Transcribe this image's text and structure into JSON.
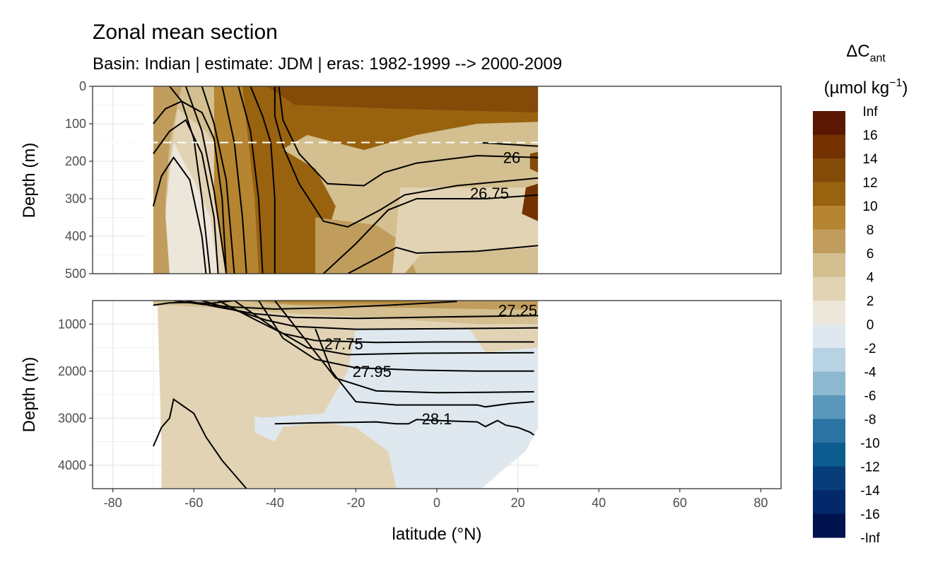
{
  "chart_data": {
    "type": "heatmap",
    "title": "Zonal mean section",
    "subtitle": "Basin: Indian | estimate: JDM  | eras: 1982-1999 --> 2000-2009",
    "xlabel": "latitude (°N)",
    "ylabel": "Depth (m)",
    "xlim": [
      -85,
      85
    ],
    "x_ticks": [
      "-80",
      "-60",
      "-40",
      "-20",
      "0",
      "20",
      "40",
      "60",
      "80"
    ],
    "data_extent_lat": [
      -70,
      25
    ],
    "panels": [
      {
        "ylim": [
          0,
          500
        ],
        "y_ticks": [
          "0",
          "100",
          "200",
          "300",
          "400",
          "500"
        ],
        "reference_depth": 150
      },
      {
        "ylim": [
          500,
          4500
        ],
        "y_ticks": [
          "1000",
          "2000",
          "3000",
          "4000"
        ]
      }
    ],
    "legend": {
      "title_main": "ΔC",
      "title_sub": "ant",
      "units_pre": "(µmol kg",
      "units_sup": "−1",
      "units_post": ")",
      "placement": "right",
      "labels": [
        "Inf",
        "16",
        "14",
        "12",
        "10",
        "8",
        "6",
        "4",
        "2",
        "0",
        "-2",
        "-4",
        "-6",
        "-8",
        "-10",
        "-12",
        "-14",
        "-16",
        "-Inf"
      ],
      "colors": [
        "#5a1703",
        "#743203",
        "#844a08",
        "#99620f",
        "#b58531",
        "#c09d5c",
        "#d3bf8f",
        "#e2d3b5",
        "#ede6db",
        "#dee8ee",
        "#b7d3e3",
        "#8cb8d0",
        "#5b97ba",
        "#2a73a3",
        "#0c5c90",
        "#073e7a",
        "#04286a",
        "#01134e"
      ]
    },
    "contour_labels": [
      {
        "text": "26",
        "lat": 18.5,
        "depth": 190
      },
      {
        "text": "26.75",
        "lat": 13,
        "depth": 285
      },
      {
        "text": "27.25",
        "lat": 20,
        "depth": 700
      },
      {
        "text": "27.75",
        "lat": -23,
        "depth": 1420
      },
      {
        "text": "27.95",
        "lat": -16,
        "depth": 2000
      },
      {
        "text": "28.1",
        "lat": 0,
        "depth": 3010
      }
    ]
  }
}
